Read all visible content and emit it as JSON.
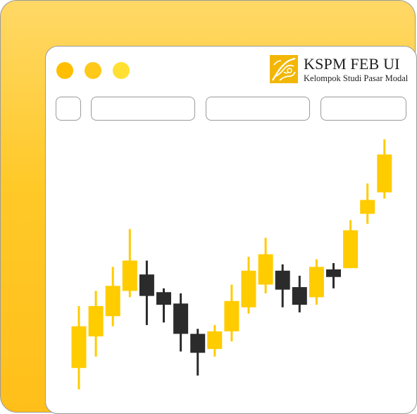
{
  "brand": {
    "name": "KSPM FEB UI",
    "subtitle": "Kelompok Studi Pasar Modal",
    "logo_icon": "kspm-logo"
  },
  "colors": {
    "background": "#ffc928",
    "bullish": "#ffcc00",
    "bearish": "#2b2b2b",
    "dot_1": "#ffbf00",
    "dot_2": "#ffc91a",
    "dot_3": "#ffe033"
  },
  "chart_data": {
    "type": "candlestick",
    "candles": [
      {
        "open": 97,
        "close": 130,
        "high": 146,
        "low": 80,
        "trend": "up"
      },
      {
        "open": 122,
        "close": 146,
        "high": 158,
        "low": 106,
        "trend": "up"
      },
      {
        "open": 138,
        "close": 162,
        "high": 177,
        "low": 130,
        "trend": "up"
      },
      {
        "open": 158,
        "close": 182,
        "high": 207,
        "low": 153,
        "trend": "up"
      },
      {
        "open": 171,
        "close": 154,
        "high": 182,
        "low": 131,
        "trend": "down"
      },
      {
        "open": 157,
        "close": 147,
        "high": 160,
        "low": 133,
        "trend": "down"
      },
      {
        "open": 148,
        "close": 124,
        "high": 156,
        "low": 110,
        "trend": "down"
      },
      {
        "open": 124,
        "close": 109,
        "high": 128,
        "low": 91,
        "trend": "down"
      },
      {
        "open": 112,
        "close": 126,
        "high": 131,
        "low": 106,
        "trend": "up"
      },
      {
        "open": 126,
        "close": 150,
        "high": 163,
        "low": 118,
        "trend": "up"
      },
      {
        "open": 145,
        "close": 174,
        "high": 185,
        "low": 140,
        "trend": "up"
      },
      {
        "open": 163,
        "close": 187,
        "high": 200,
        "low": 156,
        "trend": "up"
      },
      {
        "open": 174,
        "close": 159,
        "high": 179,
        "low": 145,
        "trend": "down"
      },
      {
        "open": 161,
        "close": 147,
        "high": 170,
        "low": 141,
        "trend": "down"
      },
      {
        "open": 153,
        "close": 177,
        "high": 183,
        "low": 147,
        "trend": "up"
      },
      {
        "open": 175,
        "close": 169,
        "high": 180,
        "low": 160,
        "trend": "down"
      },
      {
        "open": 176,
        "close": 206,
        "high": 214,
        "low": 176,
        "trend": "up"
      },
      {
        "open": 219,
        "close": 230,
        "high": 243,
        "low": 211,
        "trend": "up"
      },
      {
        "open": 236,
        "close": 266,
        "high": 278,
        "low": 231,
        "trend": "up"
      }
    ],
    "ylim": [
      60,
      290
    ]
  }
}
